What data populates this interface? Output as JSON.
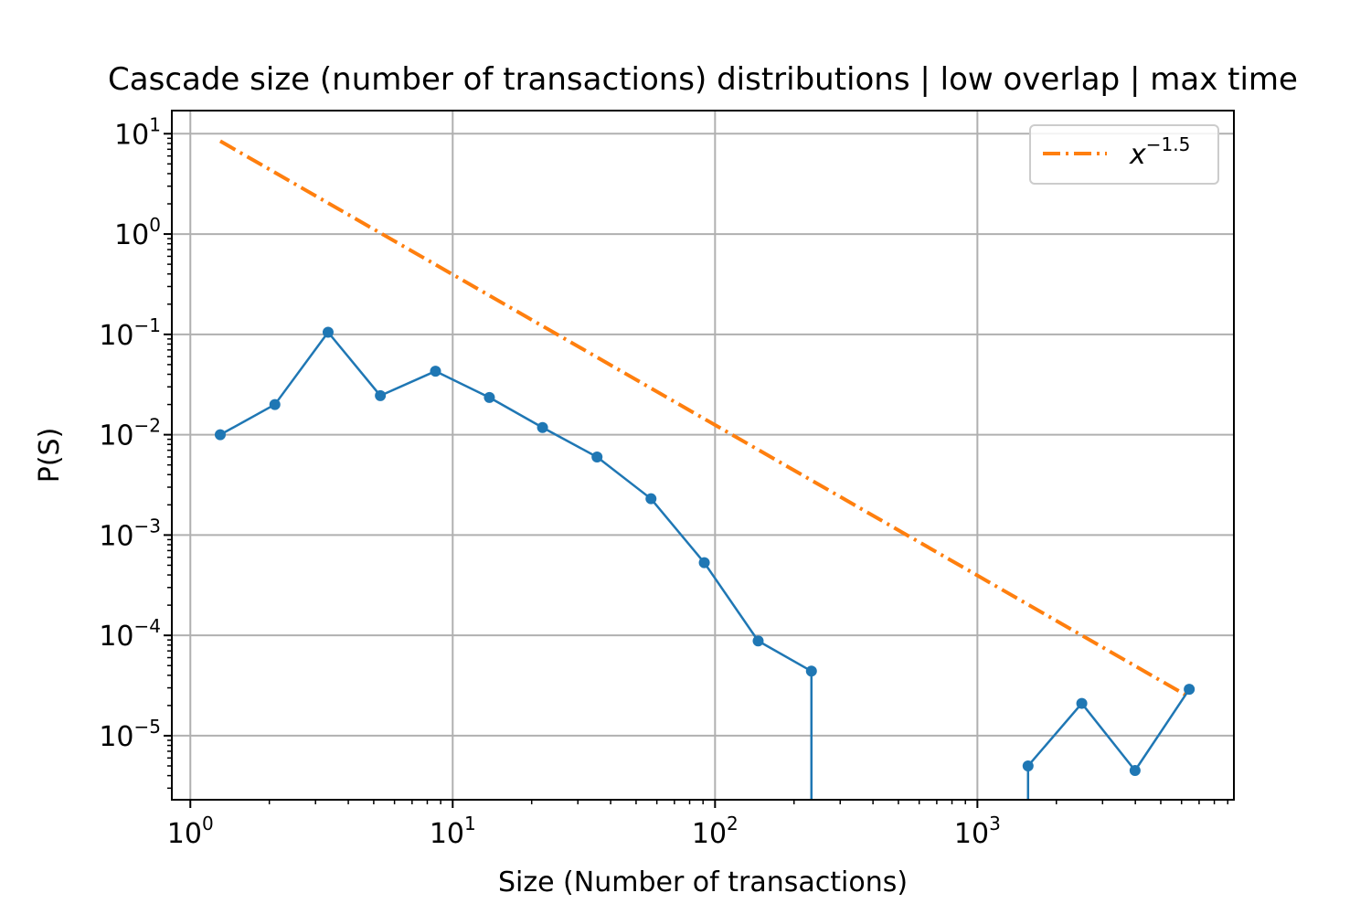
{
  "chart_data": {
    "type": "line",
    "title": "Cascade size (number of transactions) distributions | low overlap | max time",
    "xlabel": "Size (Number of transactions)",
    "ylabel": "P(S)",
    "xscale": "log",
    "yscale": "log",
    "xlim": [
      0.85,
      9500
    ],
    "ylim": [
      2.3e-06,
      17
    ],
    "grid": true,
    "legend_position": "top-right",
    "x_ticks": [
      {
        "base": "10",
        "exp": "0",
        "value": 1
      },
      {
        "base": "10",
        "exp": "1",
        "value": 10
      },
      {
        "base": "10",
        "exp": "2",
        "value": 100
      },
      {
        "base": "10",
        "exp": "3",
        "value": 1000
      }
    ],
    "y_ticks": [
      {
        "base": "10",
        "exp": "1",
        "value": 10
      },
      {
        "base": "10",
        "exp": "0",
        "value": 1
      },
      {
        "base": "10",
        "exp": "−1",
        "value": 0.1
      },
      {
        "base": "10",
        "exp": "−2",
        "value": 0.01
      },
      {
        "base": "10",
        "exp": "−3",
        "value": 0.001
      },
      {
        "base": "10",
        "exp": "−4",
        "value": 0.0001
      },
      {
        "base": "10",
        "exp": "−5",
        "value": 1e-05
      }
    ],
    "series": [
      {
        "kind": "data",
        "color": "#1f77b4",
        "points": [
          [
            1.3,
            0.01
          ],
          [
            2.1,
            0.02
          ],
          [
            3.35,
            0.105
          ],
          [
            5.3,
            0.0245
          ],
          [
            8.6,
            0.043
          ],
          [
            13.8,
            0.0235
          ],
          [
            22,
            0.0118
          ],
          [
            35.5,
            0.006
          ],
          [
            57,
            0.0023
          ],
          [
            91,
            0.00053
          ],
          [
            146,
            8.8e-05
          ],
          [
            233,
            4.4e-05
          ],
          [
            233,
            0
          ],
          [
            1560,
            0
          ],
          [
            1560,
            5e-06
          ],
          [
            2500,
            2.1e-05
          ],
          [
            3990,
            4.5e-06
          ],
          [
            6420,
            2.9e-05
          ]
        ]
      },
      {
        "kind": "reference",
        "name": "x^{-1.5}",
        "color": "#ff7f0e",
        "exponent": -1.5,
        "coefficient": 12.5,
        "x_range": [
          1.3,
          6420
        ]
      }
    ],
    "legend": [
      {
        "base": "x",
        "exp": "−1.5",
        "color": "#ff7f0e",
        "style": "dashdot"
      }
    ]
  }
}
